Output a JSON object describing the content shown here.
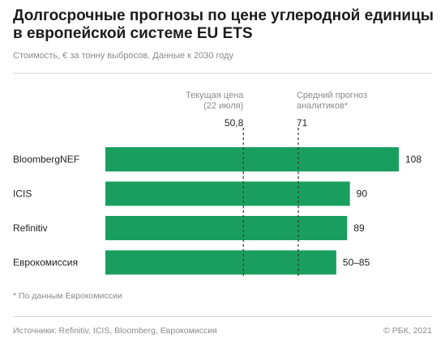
{
  "header": {
    "title": "Долгосрочные прогнозы по цене углеродной единицы в европейской системе EU ETS",
    "subtitle": "Стоимость, € за тонну выбросов. Данные к 2030 году"
  },
  "footer": {
    "footnote": "* По данным Еврокомиссии",
    "sources": "Источники: Refinitiv, ICIS, Bloomberg, Еврокомиссия",
    "copyright": "© РБК, 2021"
  },
  "colors": {
    "bar": "#1a9e5f",
    "reference_line": "#333333"
  },
  "chart_data": {
    "type": "bar",
    "orientation": "horizontal",
    "categories": [
      "BloombergNEF",
      "ICIS",
      "Refinitiv",
      "Еврокомиссия"
    ],
    "values": [
      108,
      90,
      89,
      85
    ],
    "value_labels": [
      "108",
      "90",
      "89",
      "50–85"
    ],
    "xlim": [
      0,
      108
    ],
    "grid": false,
    "reference_lines": [
      {
        "value": 50.8,
        "label": [
          "Текущая цена",
          "(22 июля)"
        ],
        "value_label": "50,8"
      },
      {
        "value": 71,
        "label": [
          "Средний прогноз",
          "аналитиков*"
        ],
        "value_label": "71"
      }
    ]
  }
}
